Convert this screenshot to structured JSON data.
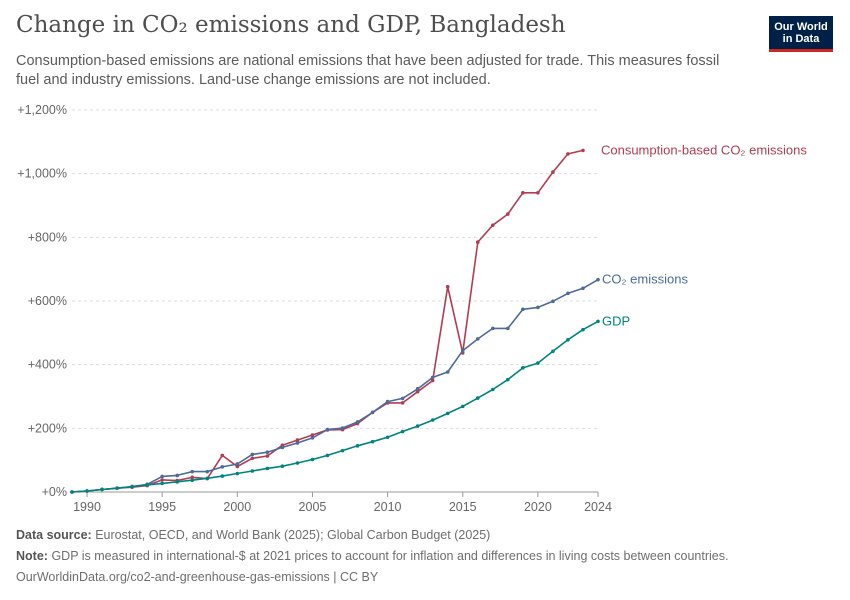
{
  "header": {
    "title": "Change in CO₂ emissions and GDP, Bangladesh",
    "subtitle": "Consumption-based emissions are national emissions that have been adjusted for trade. This measures fossil fuel and industry emissions. Land-use change emissions are not included.",
    "logo_line1": "Our World",
    "logo_line2": "in Data"
  },
  "footer": {
    "source_label": "Data source:",
    "source_text": "Eurostat, OECD, and World Bank (2025); Global Carbon Budget (2025)",
    "note_label": "Note:",
    "note_text": "GDP is measured in international-$ at 2021 prices to account for inflation and differences in living costs between countries.",
    "url": "OurWorldinData.org/co2-and-greenhouse-gas-emissions | CC BY"
  },
  "chart_data": {
    "type": "line",
    "xlim": [
      1989,
      2024
    ],
    "ylim": [
      0,
      1200
    ],
    "x_ticks": [
      1990,
      1995,
      2000,
      2005,
      2010,
      2015,
      2020,
      2024
    ],
    "y_ticks": [
      0,
      200,
      400,
      600,
      800,
      1000,
      1200
    ],
    "y_tick_labels": [
      "+0%",
      "+200%",
      "+400%",
      "+600%",
      "+800%",
      "+1,000%",
      "+1,200%"
    ],
    "grid": true,
    "series": [
      {
        "name": "Consumption-based CO₂ emissions",
        "color": "#b13d52",
        "x": [
          1989,
          1990,
          1991,
          1992,
          1993,
          1994,
          1995,
          1996,
          1997,
          1998,
          1999,
          2000,
          2001,
          2002,
          2003,
          2004,
          2005,
          2006,
          2007,
          2008,
          2009,
          2010,
          2011,
          2012,
          2013,
          2014,
          2015,
          2016,
          2017,
          2018,
          2019,
          2020,
          2021,
          2022,
          2023
        ],
        "values": [
          0,
          3,
          8,
          12,
          15,
          20,
          38,
          36,
          46,
          42,
          115,
          80,
          106,
          113,
          147,
          163,
          179,
          195,
          196,
          215,
          250,
          280,
          280,
          315,
          350,
          645,
          437,
          785,
          838,
          873,
          940,
          940,
          1005,
          1062,
          1073
        ]
      },
      {
        "name": "CO₂ emissions",
        "color": "#4c6a9c",
        "x": [
          1989,
          1990,
          1991,
          1992,
          1993,
          1994,
          1995,
          1996,
          1997,
          1998,
          1999,
          2000,
          2001,
          2002,
          2003,
          2004,
          2005,
          2006,
          2007,
          2008,
          2009,
          2010,
          2011,
          2012,
          2013,
          2014,
          2015,
          2016,
          2017,
          2018,
          2019,
          2020,
          2021,
          2022,
          2023,
          2024
        ],
        "values": [
          0,
          3,
          8,
          12,
          17,
          24,
          49,
          52,
          64,
          64,
          79,
          88,
          118,
          125,
          140,
          154,
          170,
          196,
          201,
          220,
          250,
          284,
          294,
          324,
          360,
          377,
          444,
          481,
          514,
          514,
          574,
          580,
          599,
          624,
          640,
          667
        ]
      },
      {
        "name": "GDP",
        "color": "#00847e",
        "x": [
          1989,
          1990,
          1991,
          1992,
          1993,
          1994,
          1995,
          1996,
          1997,
          1998,
          1999,
          2000,
          2001,
          2002,
          2003,
          2004,
          2005,
          2006,
          2007,
          2008,
          2009,
          2010,
          2011,
          2012,
          2013,
          2014,
          2015,
          2016,
          2017,
          2018,
          2019,
          2020,
          2021,
          2022,
          2023,
          2024
        ],
        "values": [
          0,
          3,
          8,
          12,
          17,
          22,
          27,
          32,
          37,
          43,
          50,
          58,
          66,
          74,
          81,
          91,
          102,
          115,
          130,
          145,
          158,
          172,
          190,
          207,
          226,
          247,
          269,
          295,
          322,
          353,
          390,
          405,
          442,
          478,
          510,
          536
        ]
      }
    ]
  }
}
